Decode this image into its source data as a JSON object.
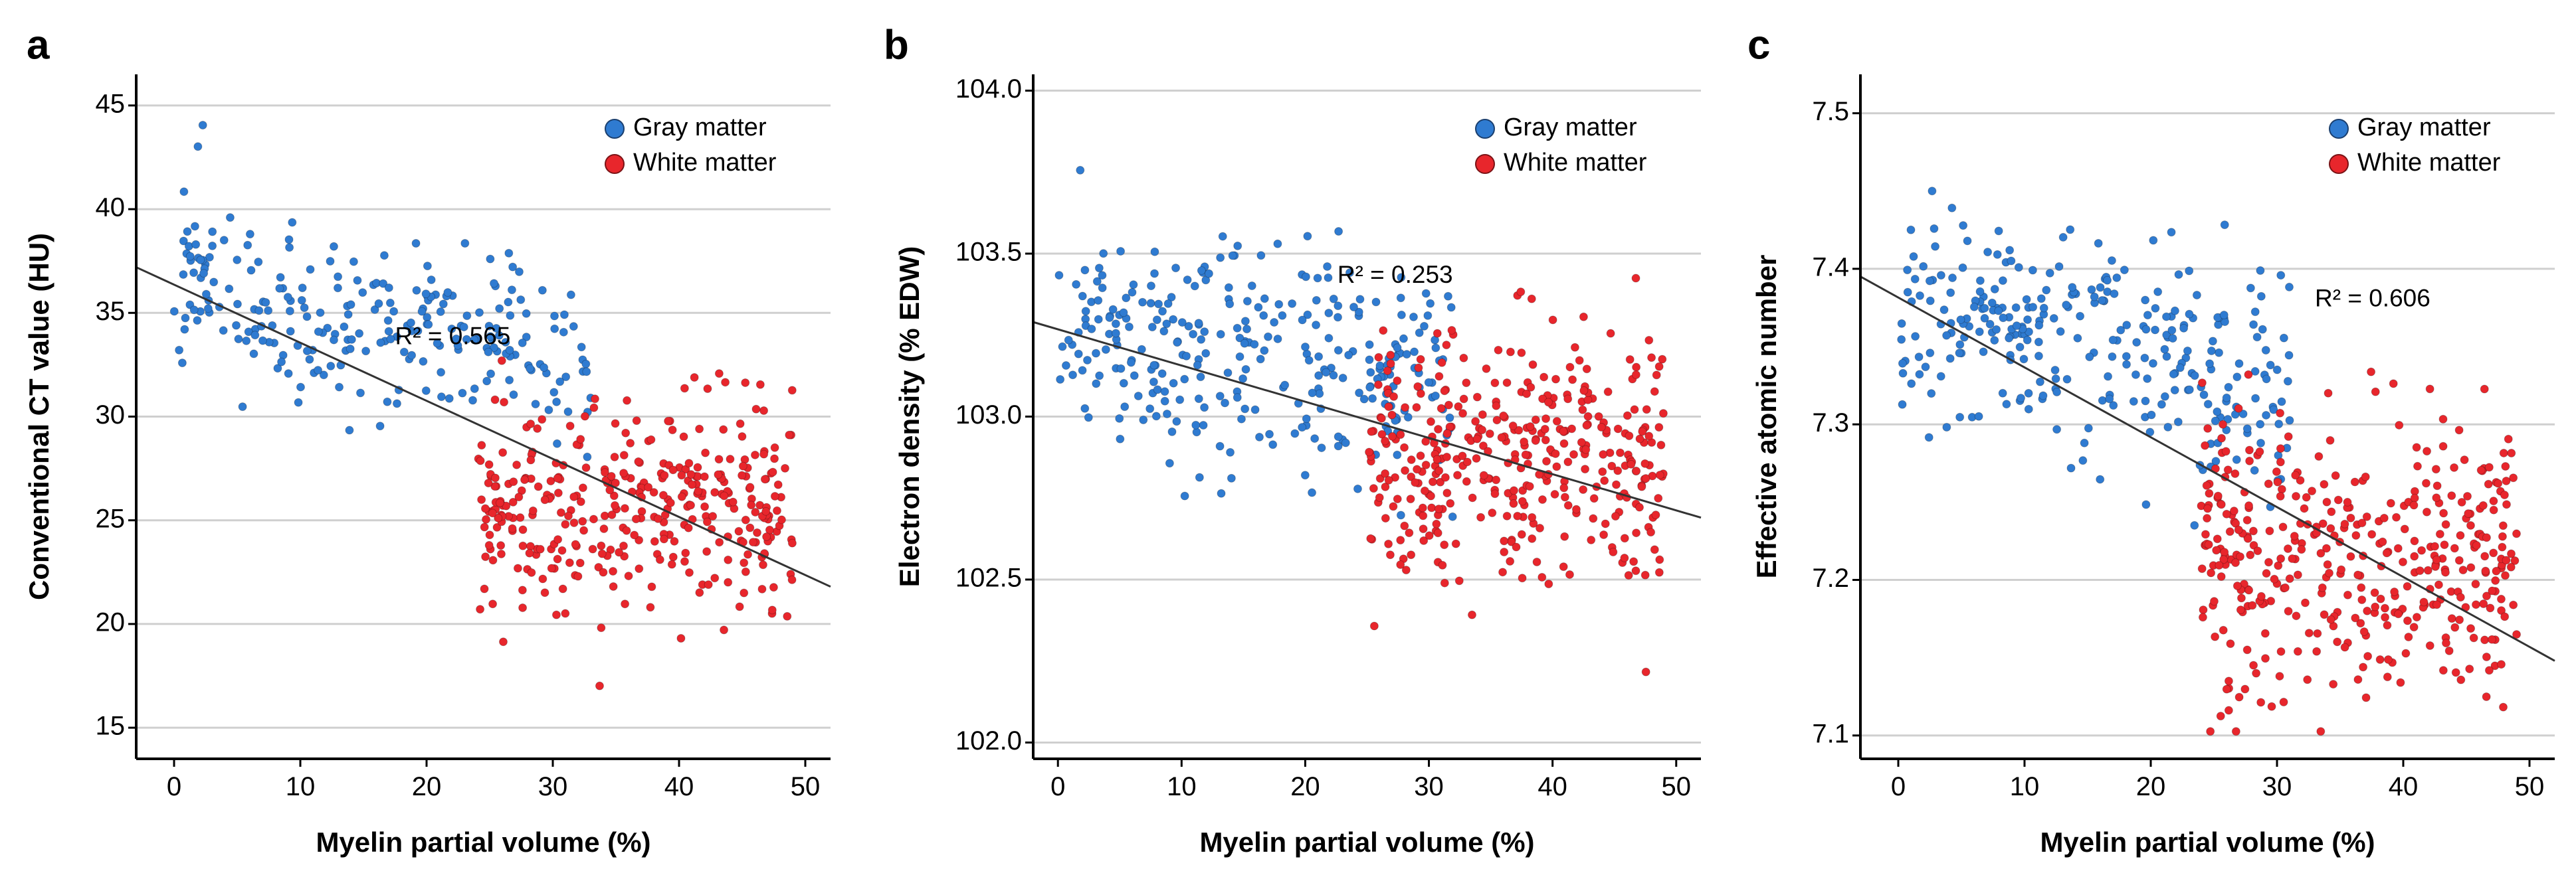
{
  "colors": {
    "gray_matter": "#2f7bd1",
    "white_matter": "#e8262c"
  },
  "chart_data": [
    {
      "panel": "a",
      "type": "scatter",
      "xlabel": "Myelin partial volume (%)",
      "ylabel": "Conventional CT value (HU)",
      "xlim": [
        -3,
        52
      ],
      "ylim": [
        13.5,
        46.5
      ],
      "xticks": [
        0,
        10,
        20,
        30,
        40,
        50
      ],
      "xtick_labels": [
        "0",
        "10",
        "20",
        "30",
        "40",
        "50"
      ],
      "yticks": [
        15,
        20,
        25,
        30,
        35,
        40,
        45
      ],
      "ytick_labels": [
        "15",
        "20",
        "25",
        "30",
        "35",
        "40",
        "45"
      ],
      "legend": [
        "Gray matter",
        "White matter"
      ],
      "legend_position": "top-right",
      "r2_text": "R² = 0.565",
      "r2_at": [
        17.5,
        33.8
      ],
      "fit": {
        "x0": -3,
        "y0": 37.2,
        "x1": 52,
        "y1": 21.8
      },
      "gray_cloud": {
        "n": 250,
        "x": [
          0,
          33
        ],
        "y_center": 34.5,
        "y_slope": -0.13,
        "y_spread": 5.2,
        "seed": 11
      },
      "white_cloud": {
        "n": 360,
        "x": [
          24,
          49
        ],
        "y_center": 25.8,
        "y_slope": 0.0,
        "y_spread": 5.8,
        "seed": 23
      }
    },
    {
      "panel": "b",
      "type": "scatter",
      "xlabel": "Myelin partial volume (%)",
      "ylabel": "Electron density (% EDW)",
      "xlim": [
        -2,
        52
      ],
      "ylim": [
        101.95,
        104.05
      ],
      "xticks": [
        0,
        10,
        20,
        30,
        40,
        50
      ],
      "xtick_labels": [
        "0",
        "10",
        "20",
        "30",
        "40",
        "50"
      ],
      "yticks": [
        102.0,
        102.5,
        103.0,
        103.5,
        104.0
      ],
      "ytick_labels": [
        "102.0",
        "102.5",
        "103.0",
        "103.5",
        "104.0"
      ],
      "legend": [
        "Gray matter",
        "White matter"
      ],
      "legend_position": "top-right",
      "r2_text": "R² = 0.253",
      "r2_at": [
        22.6,
        103.43
      ],
      "fit": {
        "x0": -2,
        "y0": 103.29,
        "x1": 52,
        "y1": 102.69
      },
      "gray_cloud": {
        "n": 300,
        "x": [
          0,
          32
        ],
        "y_center": 103.17,
        "y_slope": -0.004,
        "y_spread": 0.42,
        "seed": 37
      },
      "white_cloud": {
        "n": 380,
        "x": [
          25,
          49
        ],
        "y_center": 102.86,
        "y_slope": 0.0,
        "y_spread": 0.48,
        "seed": 41
      }
    },
    {
      "panel": "c",
      "type": "scatter",
      "xlabel": "Myelin partial volume (%)",
      "ylabel": "Effective atomic number",
      "xlim": [
        -3,
        52
      ],
      "ylim": [
        7.085,
        7.525
      ],
      "xticks": [
        0,
        10,
        20,
        30,
        40,
        50
      ],
      "xtick_labels": [
        "0",
        "10",
        "20",
        "30",
        "40",
        "50"
      ],
      "yticks": [
        7.1,
        7.2,
        7.3,
        7.4,
        7.5
      ],
      "ytick_labels": [
        "7.1",
        "7.2",
        "7.3",
        "7.4",
        "7.5"
      ],
      "legend": [
        "Gray matter",
        "White matter"
      ],
      "legend_position": "top-right",
      "r2_text": "R² = 0.606",
      "r2_at": [
        33.0,
        7.38
      ],
      "fit": {
        "x0": -3,
        "y0": 7.395,
        "x1": 52,
        "y1": 7.148
      },
      "gray_cloud": {
        "n": 300,
        "x": [
          0,
          31
        ],
        "y_center": 7.35,
        "y_slope": -0.0018,
        "y_spread": 0.085,
        "seed": 53
      },
      "white_cloud": {
        "n": 400,
        "x": [
          24,
          49
        ],
        "y_center": 7.215,
        "y_slope": 0.0,
        "y_spread": 0.1,
        "seed": 67
      }
    }
  ]
}
